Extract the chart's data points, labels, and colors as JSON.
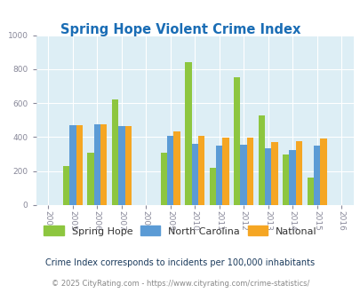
{
  "title": "Spring Hope Violent Crime Index",
  "years": [
    2005,
    2006,
    2007,
    2009,
    2010,
    2011,
    2012,
    2013,
    2014,
    2015
  ],
  "spring_hope": [
    230,
    310,
    620,
    310,
    840,
    220,
    750,
    530,
    300,
    160
  ],
  "north_carolina": [
    470,
    475,
    465,
    405,
    360,
    350,
    355,
    335,
    325,
    350
  ],
  "national": [
    470,
    475,
    465,
    435,
    405,
    395,
    395,
    370,
    375,
    390
  ],
  "bar_width": 0.27,
  "colors": {
    "spring_hope": "#8dc63f",
    "north_carolina": "#5b9bd5",
    "national": "#f5a623"
  },
  "xlim": [
    2003.5,
    2016.5
  ],
  "ylim": [
    0,
    1000
  ],
  "yticks": [
    0,
    200,
    400,
    600,
    800,
    1000
  ],
  "xticks": [
    2004,
    2005,
    2006,
    2007,
    2008,
    2009,
    2010,
    2011,
    2012,
    2013,
    2014,
    2015,
    2016
  ],
  "bg_color": "#ddeef5",
  "grid_color": "#ffffff",
  "title_color": "#1a6db5",
  "footnote1": "Crime Index corresponds to incidents per 100,000 inhabitants",
  "footnote2": "© 2025 CityRating.com - https://www.cityrating.com/crime-statistics/",
  "legend_labels": [
    "Spring Hope",
    "North Carolina",
    "National"
  ],
  "tick_color": "#888899"
}
